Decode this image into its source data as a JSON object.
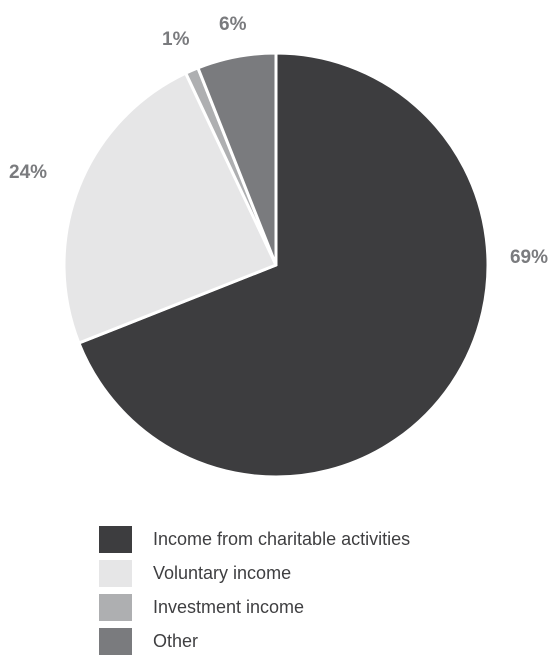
{
  "chart_data": {
    "type": "pie",
    "title": "",
    "slices": [
      {
        "name": "Income from charitable activities",
        "value": 69,
        "label": "69%",
        "color": "#3d3d3f"
      },
      {
        "name": "Voluntary income",
        "value": 24,
        "label": "24%",
        "color": "#e6e6e7"
      },
      {
        "name": "Investment income",
        "value": 1,
        "label": "1%",
        "color": "#aeafb1"
      },
      {
        "name": "Other",
        "value": 6,
        "label": "6%",
        "color": "#7a7b7e"
      }
    ],
    "start": "12 o'clock",
    "direction": "clockwise",
    "legend_position": "bottom"
  }
}
